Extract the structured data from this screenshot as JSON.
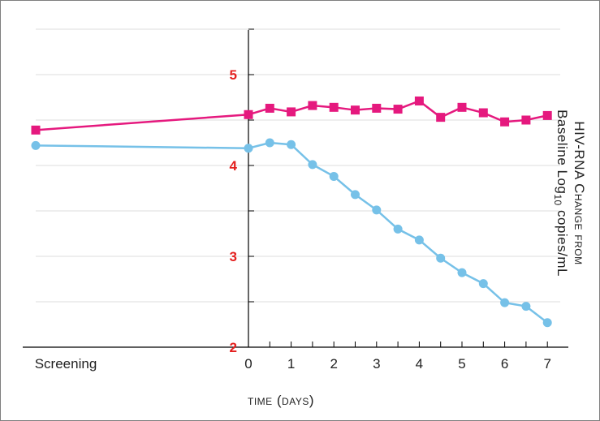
{
  "chart_data": {
    "type": "line",
    "title": "",
    "xlabel": "time (days)",
    "ylabel_line1": "HIV-RNA Change from",
    "ylabel_line2_pre": "Baseline Log",
    "ylabel_line2_sub": "10",
    "ylabel_line2_post": " copies/mL",
    "x_screening_label": "Screening",
    "xticks": [
      0,
      1,
      2,
      3,
      4,
      5,
      6,
      7
    ],
    "xlim": [
      0,
      7
    ],
    "yticks_labeled": [
      2,
      3,
      4,
      5
    ],
    "yticks_minor": [
      2.5,
      3.5,
      4.5,
      5.5
    ],
    "ylim": [
      2,
      5.5
    ],
    "grid": true,
    "series": [
      {
        "color": "#e5197e",
        "marker": "square",
        "screening_value": 4.39,
        "x": [
          0,
          0.5,
          1,
          1.5,
          2,
          2.5,
          3,
          3.5,
          4,
          4.5,
          5,
          5.5,
          6,
          6.5,
          7
        ],
        "y": [
          4.56,
          4.63,
          4.59,
          4.66,
          4.64,
          4.61,
          4.63,
          4.62,
          4.71,
          4.53,
          4.64,
          4.58,
          4.48,
          4.5,
          4.55
        ]
      },
      {
        "color": "#76c1e8",
        "marker": "circle",
        "screening_value": 4.22,
        "x": [
          0,
          0.5,
          1,
          1.5,
          2,
          2.5,
          3,
          3.5,
          4,
          4.5,
          5,
          5.5,
          6,
          6.5,
          7
        ],
        "y": [
          4.19,
          4.25,
          4.23,
          4.01,
          3.88,
          3.68,
          3.51,
          3.3,
          3.18,
          2.98,
          2.82,
          2.7,
          2.49,
          2.45,
          2.27
        ]
      }
    ]
  }
}
